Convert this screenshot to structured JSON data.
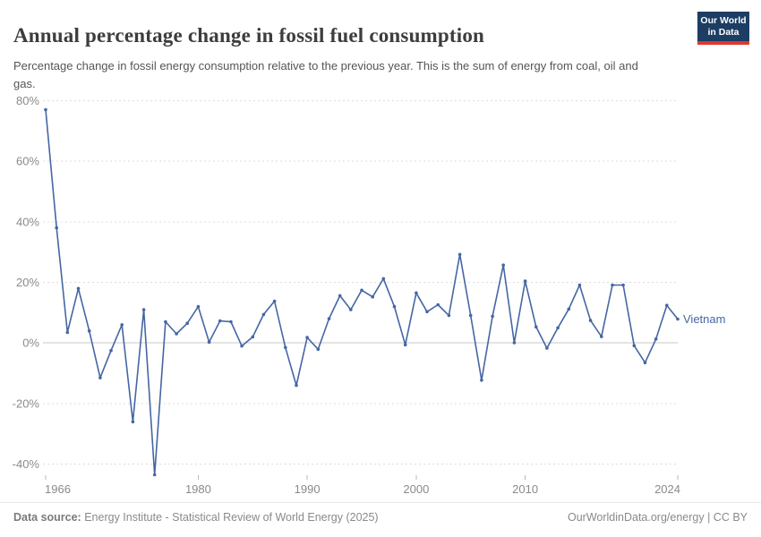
{
  "header": {
    "title": "Annual percentage change in fossil fuel consumption",
    "subtitle": "Percentage change in fossil energy consumption relative to the previous year. This is the sum of energy from coal, oil and gas."
  },
  "logo": {
    "line1": "Our World",
    "line2": "in Data"
  },
  "colors": {
    "line": "#4566a3",
    "grid": "#dcdcdc",
    "zero_line": "#c8c8c8",
    "tick_text": "#8a8a8a",
    "tick_mark": "#b9b9b9",
    "logo_bg": "#1d3d63",
    "logo_accent": "#dc3a32"
  },
  "chart_data": {
    "type": "line",
    "title": "Annual percentage change in fossil fuel consumption",
    "subtitle": "Percentage change in fossil energy consumption relative to the previous year. This is the sum of energy from coal, oil and gas.",
    "unit": "%",
    "grid": "dashed-horizontal",
    "legend_position": "right-of-line-end",
    "x_range": [
      1966,
      2024
    ],
    "ylim": [
      -45,
      80
    ],
    "x_ticks": [
      1966,
      1980,
      1990,
      2000,
      2010,
      2024
    ],
    "y_ticks": [
      80,
      60,
      40,
      20,
      0,
      -20,
      -40
    ],
    "series": [
      {
        "name": "Vietnam",
        "color": "#4566a3",
        "x": [
          1966,
          1967,
          1968,
          1969,
          1970,
          1971,
          1972,
          1973,
          1974,
          1975,
          1976,
          1977,
          1978,
          1979,
          1980,
          1981,
          1982,
          1983,
          1984,
          1985,
          1986,
          1987,
          1988,
          1989,
          1990,
          1991,
          1992,
          1993,
          1994,
          1995,
          1996,
          1997,
          1998,
          1999,
          2000,
          2001,
          2002,
          2003,
          2004,
          2005,
          2006,
          2007,
          2008,
          2009,
          2010,
          2011,
          2012,
          2013,
          2014,
          2015,
          2016,
          2017,
          2018,
          2019,
          2020,
          2021,
          2022,
          2023,
          2024
        ],
        "values": [
          77,
          38,
          3.5,
          18,
          4,
          -11.5,
          -2.5,
          6,
          -26,
          11,
          -43.5,
          7,
          3,
          6.5,
          12,
          0.3,
          7.3,
          7,
          -1,
          2,
          9.4,
          13.8,
          -1.5,
          -14,
          1.8,
          -2.1,
          8,
          15.6,
          11,
          17.4,
          15.2,
          21.2,
          12,
          -0.6,
          16.5,
          10.3,
          12.6,
          9.1,
          29.2,
          9.1,
          -12.3,
          8.8,
          25.7,
          0.1,
          20.4,
          5.3,
          -1.7,
          5,
          11.2,
          19.1,
          7.4,
          2.1,
          19.1,
          19.1,
          -0.9,
          -6.5,
          1.3,
          12.4,
          7.9
        ]
      }
    ]
  },
  "footer": {
    "source_label": "Data source:",
    "source_text": " Energy Institute - Statistical Review of World Energy (2025)",
    "link_text": "OurWorldinData.org/energy | CC BY"
  }
}
